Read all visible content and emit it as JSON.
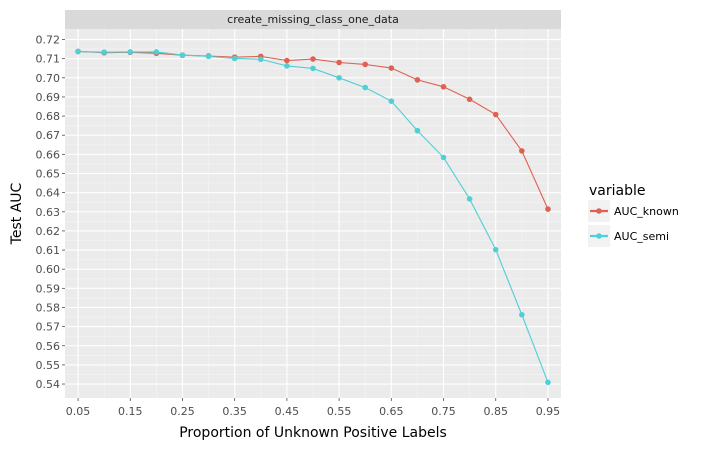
{
  "chart_data": {
    "type": "line",
    "facet_title": "create_missing_class_one_data",
    "xlabel": "Proportion of Unknown Positive Labels",
    "ylabel": "Test AUC",
    "xlim": [
      0.025,
      0.975
    ],
    "ylim": [
      0.5327,
      0.7255
    ],
    "x_ticks": [
      0.05,
      0.15,
      0.25,
      0.35,
      0.45,
      0.55,
      0.65,
      0.75,
      0.85,
      0.95
    ],
    "x_tick_labels": [
      "0.05",
      "0.15",
      "0.25",
      "0.35",
      "0.45",
      "0.55",
      "0.65",
      "0.75",
      "0.85",
      "0.95"
    ],
    "y_ticks": [
      0.54,
      0.55,
      0.56,
      0.57,
      0.58,
      0.59,
      0.6,
      0.61,
      0.62,
      0.63,
      0.64,
      0.65,
      0.66,
      0.67,
      0.68,
      0.69,
      0.7,
      0.71,
      0.72
    ],
    "y_tick_labels": [
      "0.54",
      "0.55",
      "0.56",
      "0.57",
      "0.58",
      "0.59",
      "0.60",
      "0.61",
      "0.62",
      "0.63",
      "0.64",
      "0.65",
      "0.66",
      "0.67",
      "0.68",
      "0.69",
      "0.70",
      "0.71",
      "0.72"
    ],
    "x": [
      0.05,
      0.1,
      0.15,
      0.2,
      0.25,
      0.3,
      0.35,
      0.4,
      0.45,
      0.5,
      0.55,
      0.6,
      0.65,
      0.7,
      0.75,
      0.8,
      0.85,
      0.9,
      0.95
    ],
    "series": [
      {
        "name": "AUC_known",
        "color": "#e06151",
        "values": [
          0.7138,
          0.7131,
          0.7133,
          0.7128,
          0.7118,
          0.7114,
          0.7108,
          0.7112,
          0.709,
          0.7098,
          0.708,
          0.707,
          0.7051,
          0.6989,
          0.6953,
          0.6888,
          0.6808,
          0.6618,
          0.6314
        ]
      },
      {
        "name": "AUC_semi",
        "color": "#4fcfd6",
        "values": [
          0.7137,
          0.7134,
          0.7135,
          0.7135,
          0.7119,
          0.7112,
          0.7101,
          0.7097,
          0.7062,
          0.7049,
          0.7,
          0.6949,
          0.6878,
          0.6724,
          0.6584,
          0.6367,
          0.6102,
          0.5762,
          0.5409
        ]
      }
    ],
    "legend_title": "variable",
    "legend_position": "right",
    "grid": true
  }
}
